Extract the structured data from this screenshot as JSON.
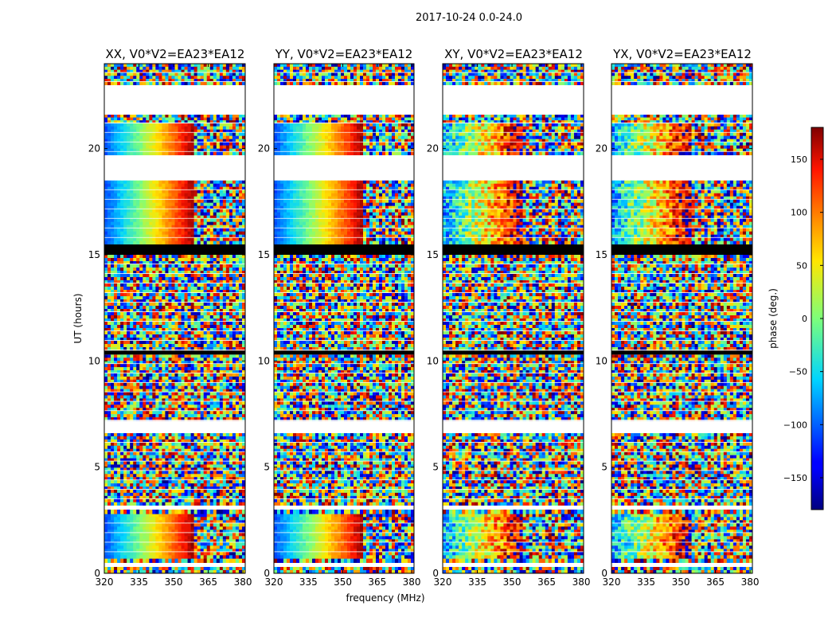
{
  "chart_data": {
    "type": "heatmap",
    "suptitle": "2017-10-24 0.0-24.0",
    "xlabel": "frequency (MHz)",
    "ylabel": "UT (hours)",
    "xlim": [
      320,
      381
    ],
    "ylim": [
      0,
      24
    ],
    "xticks": [
      320,
      335,
      350,
      365,
      380
    ],
    "yticks": [
      0,
      5,
      10,
      15,
      20
    ],
    "colorbar": {
      "label": "phase (deg.)",
      "range": [
        -180,
        180
      ],
      "ticks": [
        150,
        100,
        50,
        0,
        -50,
        -100,
        -150
      ],
      "tick_labels": [
        "150",
        "100",
        "50",
        "0",
        "−50",
        "−100",
        "−150"
      ],
      "colormap": "jet"
    },
    "panels": [
      {
        "title": "XX, V0*V2=EA23*EA12",
        "correlation": "parallel"
      },
      {
        "title": "YY, V0*V2=EA23*EA12",
        "correlation": "parallel"
      },
      {
        "title": "XY, V0*V2=EA23*EA12",
        "correlation": "cross"
      },
      {
        "title": "YX, V0*V2=EA23*EA12",
        "correlation": "cross"
      }
    ],
    "bands": [
      {
        "from": 0.0,
        "to": 0.3,
        "kind": "noise"
      },
      {
        "from": 0.3,
        "to": 0.5,
        "kind": "blank"
      },
      {
        "from": 0.5,
        "to": 0.7,
        "kind": "noise"
      },
      {
        "from": 0.7,
        "to": 2.8,
        "kind": "gradient"
      },
      {
        "from": 2.8,
        "to": 3.0,
        "kind": "noise"
      },
      {
        "from": 3.0,
        "to": 3.2,
        "kind": "blank"
      },
      {
        "from": 3.2,
        "to": 6.6,
        "kind": "noise"
      },
      {
        "from": 6.6,
        "to": 7.2,
        "kind": "blank"
      },
      {
        "from": 7.2,
        "to": 10.3,
        "kind": "noise"
      },
      {
        "from": 10.3,
        "to": 10.5,
        "kind": "black"
      },
      {
        "from": 10.5,
        "to": 15.0,
        "kind": "noise"
      },
      {
        "from": 15.0,
        "to": 15.5,
        "kind": "black"
      },
      {
        "from": 15.5,
        "to": 18.5,
        "kind": "gradient"
      },
      {
        "from": 18.5,
        "to": 19.7,
        "kind": "blank"
      },
      {
        "from": 19.7,
        "to": 21.2,
        "kind": "gradient"
      },
      {
        "from": 21.2,
        "to": 21.6,
        "kind": "noise"
      },
      {
        "from": 21.6,
        "to": 23.0,
        "kind": "blank"
      },
      {
        "from": 23.0,
        "to": 24.0,
        "kind": "noise"
      }
    ]
  }
}
